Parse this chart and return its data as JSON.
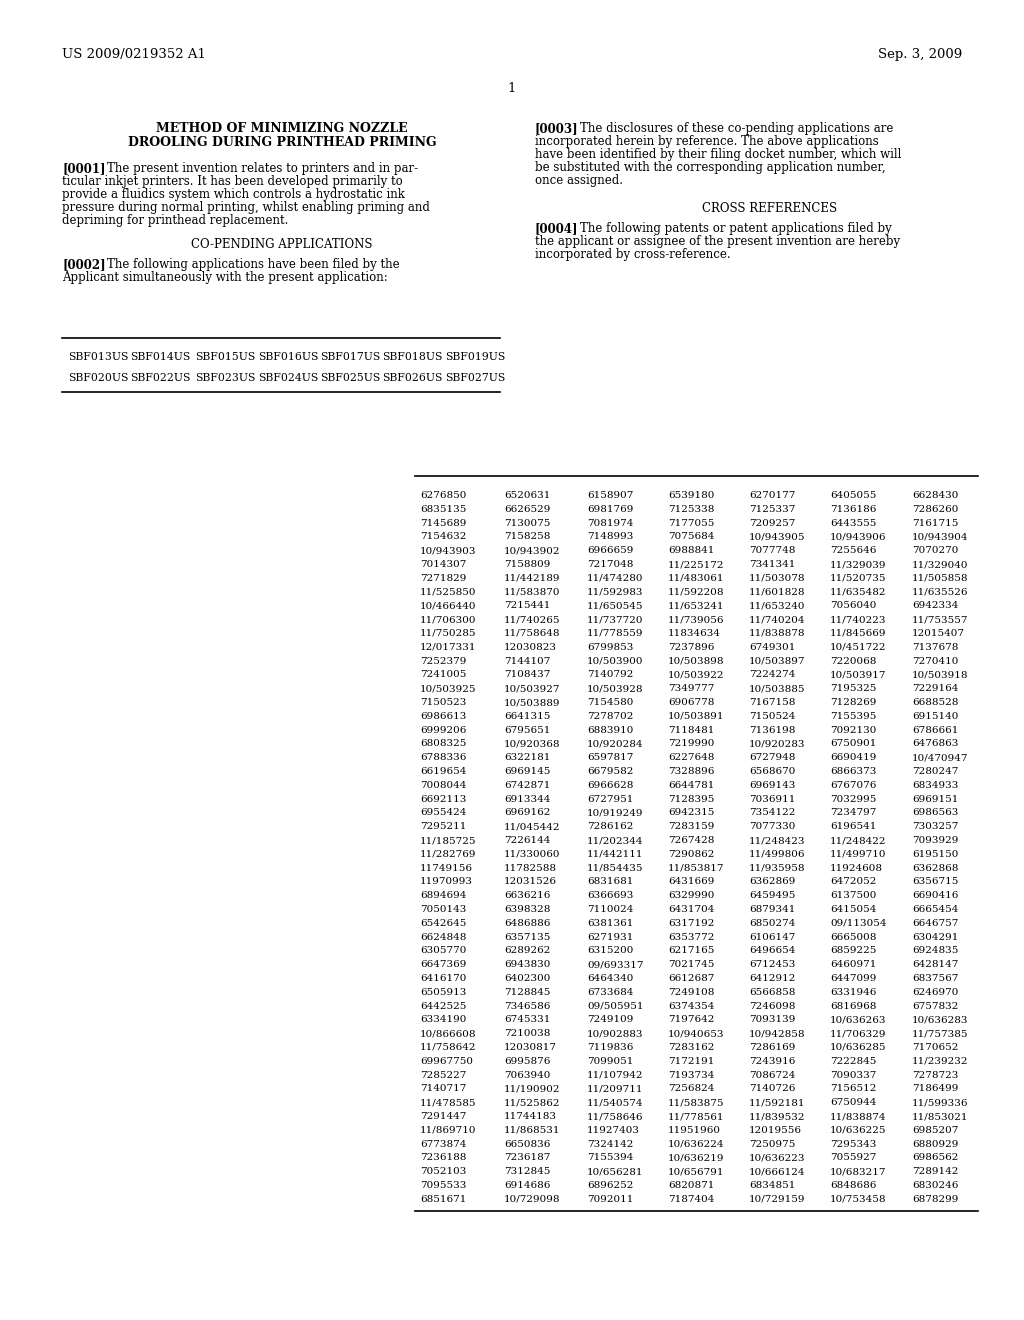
{
  "header_left": "US 2009/0219352 A1",
  "header_right": "Sep. 3, 2009",
  "page_number": "1",
  "table1_data": [
    [
      "SBF013US",
      "SBF014US",
      "SBF015US",
      "SBF016US",
      "SBF017US",
      "SBF018US",
      "SBF019US"
    ],
    [
      "SBF020US",
      "SBF022US",
      "SBF023US",
      "SBF024US",
      "SBF025US",
      "SBF026US",
      "SBF027US"
    ]
  ],
  "table2_data": [
    [
      "6276850",
      "6520631",
      "6158907",
      "6539180",
      "6270177",
      "6405055",
      "6628430"
    ],
    [
      "6835135",
      "6626529",
      "6981769",
      "7125338",
      "7125337",
      "7136186",
      "7286260"
    ],
    [
      "7145689",
      "7130075",
      "7081974",
      "7177055",
      "7209257",
      "6443555",
      "7161715"
    ],
    [
      "7154632",
      "7158258",
      "7148993",
      "7075684",
      "10/943905",
      "10/943906",
      "10/943904"
    ],
    [
      "10/943903",
      "10/943902",
      "6966659",
      "6988841",
      "7077748",
      "7255646",
      "7070270"
    ],
    [
      "7014307",
      "7158809",
      "7217048",
      "11/225172",
      "7341341",
      "11/329039",
      "11/329040"
    ],
    [
      "7271829",
      "11/442189",
      "11/474280",
      "11/483061",
      "11/503078",
      "11/520735",
      "11/505858"
    ],
    [
      "11/525850",
      "11/583870",
      "11/592983",
      "11/592208",
      "11/601828",
      "11/635482",
      "11/635526"
    ],
    [
      "10/466440",
      "7215441",
      "11/650545",
      "11/653241",
      "11/653240",
      "7056040",
      "6942334"
    ],
    [
      "11/706300",
      "11/740265",
      "11/737720",
      "11/739056",
      "11/740204",
      "11/740223",
      "11/753557"
    ],
    [
      "11/750285",
      "11/758648",
      "11/778559",
      "11834634",
      "11/838878",
      "11/845669",
      "12015407"
    ],
    [
      "12/017331",
      "12030823",
      "6799853",
      "7237896",
      "6749301",
      "10/451722",
      "7137678"
    ],
    [
      "7252379",
      "7144107",
      "10/503900",
      "10/503898",
      "10/503897",
      "7220068",
      "7270410"
    ],
    [
      "7241005",
      "7108437",
      "7140792",
      "10/503922",
      "7224274",
      "10/503917",
      "10/503918"
    ],
    [
      "10/503925",
      "10/503927",
      "10/503928",
      "7349777",
      "10/503885",
      "7195325",
      "7229164"
    ],
    [
      "7150523",
      "10/503889",
      "7154580",
      "6906778",
      "7167158",
      "7128269",
      "6688528"
    ],
    [
      "6986613",
      "6641315",
      "7278702",
      "10/503891",
      "7150524",
      "7155395",
      "6915140"
    ],
    [
      "6999206",
      "6795651",
      "6883910",
      "7118481",
      "7136198",
      "7092130",
      "6786661"
    ],
    [
      "6808325",
      "10/920368",
      "10/920284",
      "7219990",
      "10/920283",
      "6750901",
      "6476863"
    ],
    [
      "6788336",
      "6322181",
      "6597817",
      "6227648",
      "6727948",
      "6690419",
      "10/470947"
    ],
    [
      "6619654",
      "6969145",
      "6679582",
      "7328896",
      "6568670",
      "6866373",
      "7280247"
    ],
    [
      "7008044",
      "6742871",
      "6966628",
      "6644781",
      "6969143",
      "6767076",
      "6834933"
    ],
    [
      "6692113",
      "6913344",
      "6727951",
      "7128395",
      "7036911",
      "7032995",
      "6969151"
    ],
    [
      "6955424",
      "6969162",
      "10/919249",
      "6942315",
      "7354122",
      "7234797",
      "6986563"
    ],
    [
      "7295211",
      "11/045442",
      "7286162",
      "7283159",
      "7077330",
      "6196541",
      "7303257"
    ],
    [
      "11/185725",
      "7226144",
      "11/202344",
      "7267428",
      "11/248423",
      "11/248422",
      "7093929"
    ],
    [
      "11/282769",
      "11/330060",
      "11/442111",
      "7290862",
      "11/499806",
      "11/499710",
      "6195150"
    ],
    [
      "11749156",
      "11782588",
      "11/854435",
      "11/853817",
      "11/935958",
      "11924608",
      "6362868"
    ],
    [
      "11970993",
      "12031526",
      "6831681",
      "6431669",
      "6362869",
      "6472052",
      "6356715"
    ],
    [
      "6894694",
      "6636216",
      "6366693",
      "6329990",
      "6459495",
      "6137500",
      "6690416"
    ],
    [
      "7050143",
      "6398328",
      "7110024",
      "6431704",
      "6879341",
      "6415054",
      "6665454"
    ],
    [
      "6542645",
      "6486886",
      "6381361",
      "6317192",
      "6850274",
      "09/113054",
      "6646757"
    ],
    [
      "6624848",
      "6357135",
      "6271931",
      "6353772",
      "6106147",
      "6665008",
      "6304291"
    ],
    [
      "6305770",
      "6289262",
      "6315200",
      "6217165",
      "6496654",
      "6859225",
      "6924835"
    ],
    [
      "6647369",
      "6943830",
      "09/693317",
      "7021745",
      "6712453",
      "6460971",
      "6428147"
    ],
    [
      "6416170",
      "6402300",
      "6464340",
      "6612687",
      "6412912",
      "6447099",
      "6837567"
    ],
    [
      "6505913",
      "7128845",
      "6733684",
      "7249108",
      "6566858",
      "6331946",
      "6246970"
    ],
    [
      "6442525",
      "7346586",
      "09/505951",
      "6374354",
      "7246098",
      "6816968",
      "6757832"
    ],
    [
      "6334190",
      "6745331",
      "7249109",
      "7197642",
      "7093139",
      "10/636263",
      "10/636283"
    ],
    [
      "10/866608",
      "7210038",
      "10/902883",
      "10/940653",
      "10/942858",
      "11/706329",
      "11/757385"
    ],
    [
      "11/758642",
      "12030817",
      "7119836",
      "7283162",
      "7286169",
      "10/636285",
      "7170652"
    ],
    [
      "69967750",
      "6995876",
      "7099051",
      "7172191",
      "7243916",
      "7222845",
      "11/239232"
    ],
    [
      "7285227",
      "7063940",
      "11/107942",
      "7193734",
      "7086724",
      "7090337",
      "7278723"
    ],
    [
      "7140717",
      "11/190902",
      "11/209711",
      "7256824",
      "7140726",
      "7156512",
      "7186499"
    ],
    [
      "11/478585",
      "11/525862",
      "11/540574",
      "11/583875",
      "11/592181",
      "6750944",
      "11/599336"
    ],
    [
      "7291447",
      "11744183",
      "11/758646",
      "11/778561",
      "11/839532",
      "11/838874",
      "11/853021"
    ],
    [
      "11/869710",
      "11/868531",
      "11927403",
      "11951960",
      "12019556",
      "10/636225",
      "6985207"
    ],
    [
      "6773874",
      "6650836",
      "7324142",
      "10/636224",
      "7250975",
      "7295343",
      "6880929"
    ],
    [
      "7236188",
      "7236187",
      "7155394",
      "10/636219",
      "10/636223",
      "7055927",
      "6986562"
    ],
    [
      "7052103",
      "7312845",
      "10/656281",
      "10/656791",
      "10/666124",
      "10/683217",
      "7289142"
    ],
    [
      "7095533",
      "6914686",
      "6896252",
      "6820871",
      "6834851",
      "6848686",
      "6830246"
    ],
    [
      "6851671",
      "10/729098",
      "7092011",
      "7187404",
      "10/729159",
      "10/753458",
      "6878299"
    ]
  ]
}
